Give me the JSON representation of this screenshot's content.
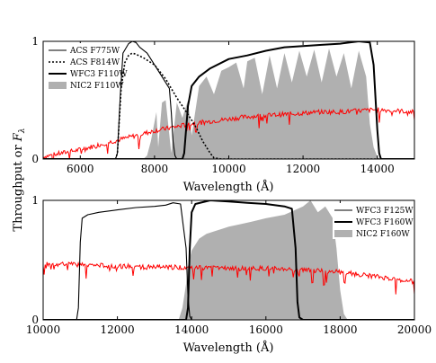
{
  "shared_ylabel": "Throughput or F_λ",
  "chart_data": [
    {
      "type": "line",
      "xlabel": "Wavelength (Å)",
      "xlim": [
        5000,
        15000
      ],
      "ylim": [
        0,
        1
      ],
      "xticks": [
        6000,
        8000,
        10000,
        12000,
        14000
      ],
      "yticks": [
        0,
        1
      ],
      "legend_position": "top-left",
      "series": [
        {
          "name": "ACS F775W",
          "style": "solid-thin",
          "color": "#000000",
          "x": [
            5000,
            6950,
            7000,
            7080,
            7150,
            7300,
            7400,
            7500,
            7600,
            7800,
            8000,
            8200,
            8400,
            8450,
            8500,
            8550,
            8600,
            8700,
            9000,
            15000
          ],
          "y": [
            0,
            0,
            0.05,
            0.55,
            0.9,
            0.98,
            1.0,
            0.99,
            0.95,
            0.9,
            0.8,
            0.7,
            0.6,
            0.4,
            0.15,
            0.03,
            0,
            0,
            0,
            0
          ]
        },
        {
          "name": "ACS F814W",
          "style": "dotted",
          "color": "#000000",
          "x": [
            5000,
            6950,
            7000,
            7100,
            7200,
            7300,
            7400,
            7500,
            7700,
            8000,
            8300,
            8600,
            8900,
            9100,
            9300,
            9500,
            9600,
            9800,
            15000
          ],
          "y": [
            0,
            0,
            0.05,
            0.6,
            0.82,
            0.88,
            0.9,
            0.89,
            0.86,
            0.8,
            0.68,
            0.52,
            0.38,
            0.28,
            0.15,
            0.05,
            0.01,
            0,
            0
          ]
        },
        {
          "name": "WFC3 F110W",
          "style": "solid-thick",
          "color": "#000000",
          "x": [
            5000,
            8750,
            8800,
            8900,
            9000,
            9200,
            9500,
            10000,
            10500,
            11000,
            11500,
            12000,
            12500,
            13000,
            13500,
            13800,
            13900,
            14000,
            14050,
            14100,
            15000
          ],
          "y": [
            0,
            0,
            0.05,
            0.45,
            0.62,
            0.7,
            0.77,
            0.85,
            0.88,
            0.92,
            0.95,
            0.96,
            0.97,
            0.98,
            1.0,
            0.99,
            0.8,
            0.25,
            0.05,
            0,
            0
          ]
        },
        {
          "name": "NIC2 F110W",
          "style": "filled",
          "color": "#b0b0b0",
          "x": [
            7700,
            7800,
            7900,
            8050,
            8100,
            8200,
            8300,
            8450,
            8600,
            8750,
            8900,
            9000,
            9200,
            9400,
            9600,
            9800,
            10000,
            10200,
            10400,
            10500,
            10700,
            10900,
            11100,
            11300,
            11500,
            11700,
            11900,
            12100,
            12300,
            12500,
            12700,
            12900,
            13100,
            13300,
            13500,
            13700,
            13800,
            13900,
            14000,
            14050
          ],
          "y": [
            0,
            0.03,
            0.15,
            0.4,
            0.1,
            0.48,
            0.5,
            0.05,
            0.48,
            0.35,
            0.5,
            0.2,
            0.62,
            0.7,
            0.55,
            0.75,
            0.78,
            0.82,
            0.6,
            0.83,
            0.86,
            0.55,
            0.88,
            0.6,
            0.9,
            0.65,
            0.92,
            0.7,
            0.93,
            0.65,
            0.94,
            0.7,
            0.9,
            0.6,
            0.92,
            0.7,
            0.3,
            0.1,
            0.02,
            0
          ]
        },
        {
          "name": "",
          "style": "spectrum",
          "color": "#ff0000",
          "x": [
            5000,
            5500,
            6000,
            6500,
            7000,
            7500,
            8000,
            8500,
            9000,
            9500,
            10000,
            10500,
            11000,
            11500,
            12000,
            12500,
            13000,
            13500,
            14000,
            14500,
            15000
          ],
          "y": [
            0.02,
            0.05,
            0.08,
            0.12,
            0.16,
            0.2,
            0.24,
            0.27,
            0.3,
            0.32,
            0.34,
            0.36,
            0.37,
            0.38,
            0.39,
            0.4,
            0.4,
            0.41,
            0.42,
            0.41,
            0.4
          ]
        }
      ]
    },
    {
      "type": "line",
      "xlabel": "Wavelength (Å)",
      "xlim": [
        10000,
        20000
      ],
      "ylim": [
        0,
        1
      ],
      "xticks": [
        10000,
        12000,
        14000,
        16000,
        18000,
        20000
      ],
      "yticks": [
        0,
        1
      ],
      "legend_position": "top-right",
      "series": [
        {
          "name": "WFC3 F125W",
          "style": "solid-thin",
          "color": "#000000",
          "x": [
            10000,
            10900,
            10950,
            11000,
            11050,
            11200,
            11500,
            12000,
            12500,
            13000,
            13300,
            13500,
            13700,
            13850,
            13900,
            13950,
            14000,
            14100,
            20000
          ],
          "y": [
            0,
            0,
            0.1,
            0.65,
            0.85,
            0.88,
            0.9,
            0.92,
            0.94,
            0.95,
            0.96,
            0.98,
            0.97,
            0.6,
            0.2,
            0.03,
            0,
            0,
            0
          ]
        },
        {
          "name": "WFC3 F160W",
          "style": "solid-thick",
          "color": "#000000",
          "x": [
            10000,
            13850,
            13900,
            13950,
            14000,
            14100,
            14500,
            15000,
            15500,
            16000,
            16500,
            16700,
            16800,
            16850,
            16900,
            17000,
            20000
          ],
          "y": [
            0,
            0,
            0.1,
            0.6,
            0.9,
            0.97,
            1.0,
            0.99,
            0.98,
            0.97,
            0.95,
            0.93,
            0.6,
            0.15,
            0.02,
            0,
            0
          ]
        },
        {
          "name": "NIC2 F160W",
          "style": "filled",
          "color": "#b0b0b0",
          "x": [
            13650,
            13750,
            13850,
            13900,
            14000,
            14200,
            14400,
            14700,
            15000,
            15300,
            15600,
            16000,
            16500,
            17000,
            17200,
            17400,
            17600,
            17800,
            17900,
            18000,
            18100,
            18200
          ],
          "y": [
            0,
            0.1,
            0.3,
            0.45,
            0.58,
            0.68,
            0.72,
            0.75,
            0.78,
            0.8,
            0.82,
            0.85,
            0.88,
            0.95,
            1.0,
            0.9,
            0.95,
            0.85,
            0.6,
            0.25,
            0.05,
            0
          ]
        },
        {
          "name": "",
          "style": "spectrum",
          "color": "#ff0000",
          "x": [
            10000,
            11000,
            12000,
            13000,
            14000,
            15000,
            16000,
            17000,
            18000,
            19000,
            20000
          ],
          "y": [
            0.47,
            0.46,
            0.45,
            0.44,
            0.44,
            0.43,
            0.43,
            0.42,
            0.4,
            0.36,
            0.32
          ]
        }
      ]
    }
  ]
}
